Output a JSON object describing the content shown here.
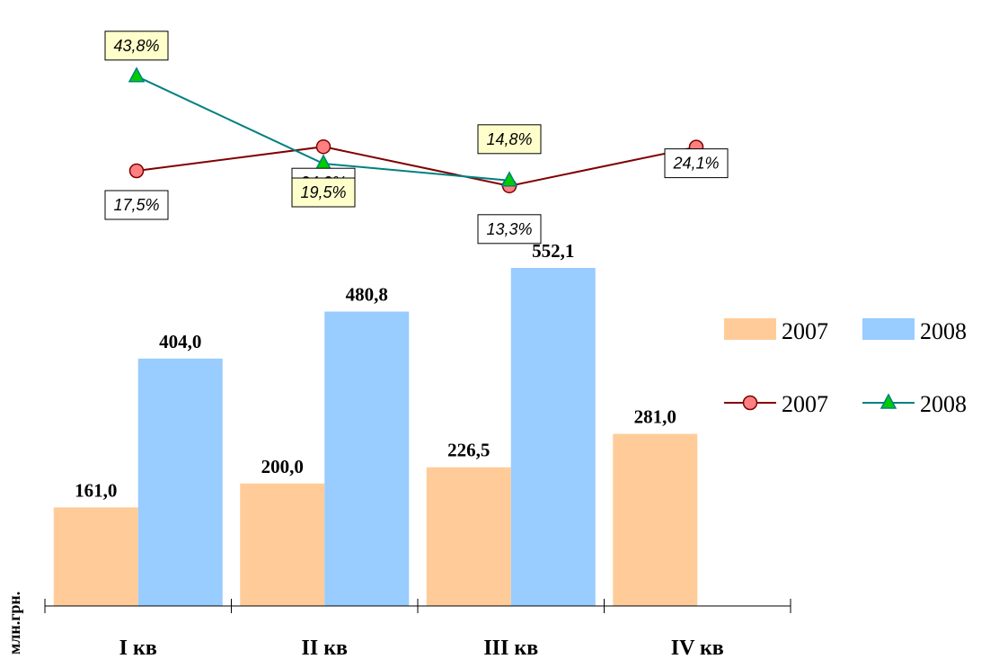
{
  "chart_data": {
    "type": "bar+line",
    "categories": [
      "I кв",
      "II кв",
      "III кв",
      "IV кв"
    ],
    "ylabel": "млн.грн.",
    "bar_series": [
      {
        "name": "2007",
        "values": [
          "161,0",
          "200,0",
          "226,5",
          "281,0"
        ],
        "numeric": [
          161.0,
          200.0,
          226.5,
          281.0
        ],
        "color": "#FFCC99"
      },
      {
        "name": "2008",
        "values": [
          "404,0",
          "480,8",
          "552,1",
          null
        ],
        "numeric": [
          404.0,
          480.8,
          552.1,
          null
        ],
        "color": "#99CCFF"
      }
    ],
    "bar_ylim": [
      0,
      600
    ],
    "line_series": [
      {
        "name": "2007",
        "values": [
          "17,5%",
          "24,2%",
          "13,3%",
          "24,1%"
        ],
        "numeric": [
          17.5,
          24.2,
          13.3,
          24.1
        ],
        "color": "#800000",
        "marker": "circle",
        "marker_fill": "#FF8080",
        "label_bg": "#FFFFFF"
      },
      {
        "name": "2008",
        "values": [
          "43,8%",
          "19,5%",
          "14,8%",
          null
        ],
        "numeric": [
          43.8,
          19.5,
          14.8,
          null
        ],
        "color": "#008080",
        "marker": "triangle",
        "marker_fill": "#00CC00",
        "label_bg": "#FFFFCC"
      }
    ],
    "line_ylim": [
      0,
      60
    ],
    "legend": {
      "placement": "right"
    },
    "grid": false
  }
}
